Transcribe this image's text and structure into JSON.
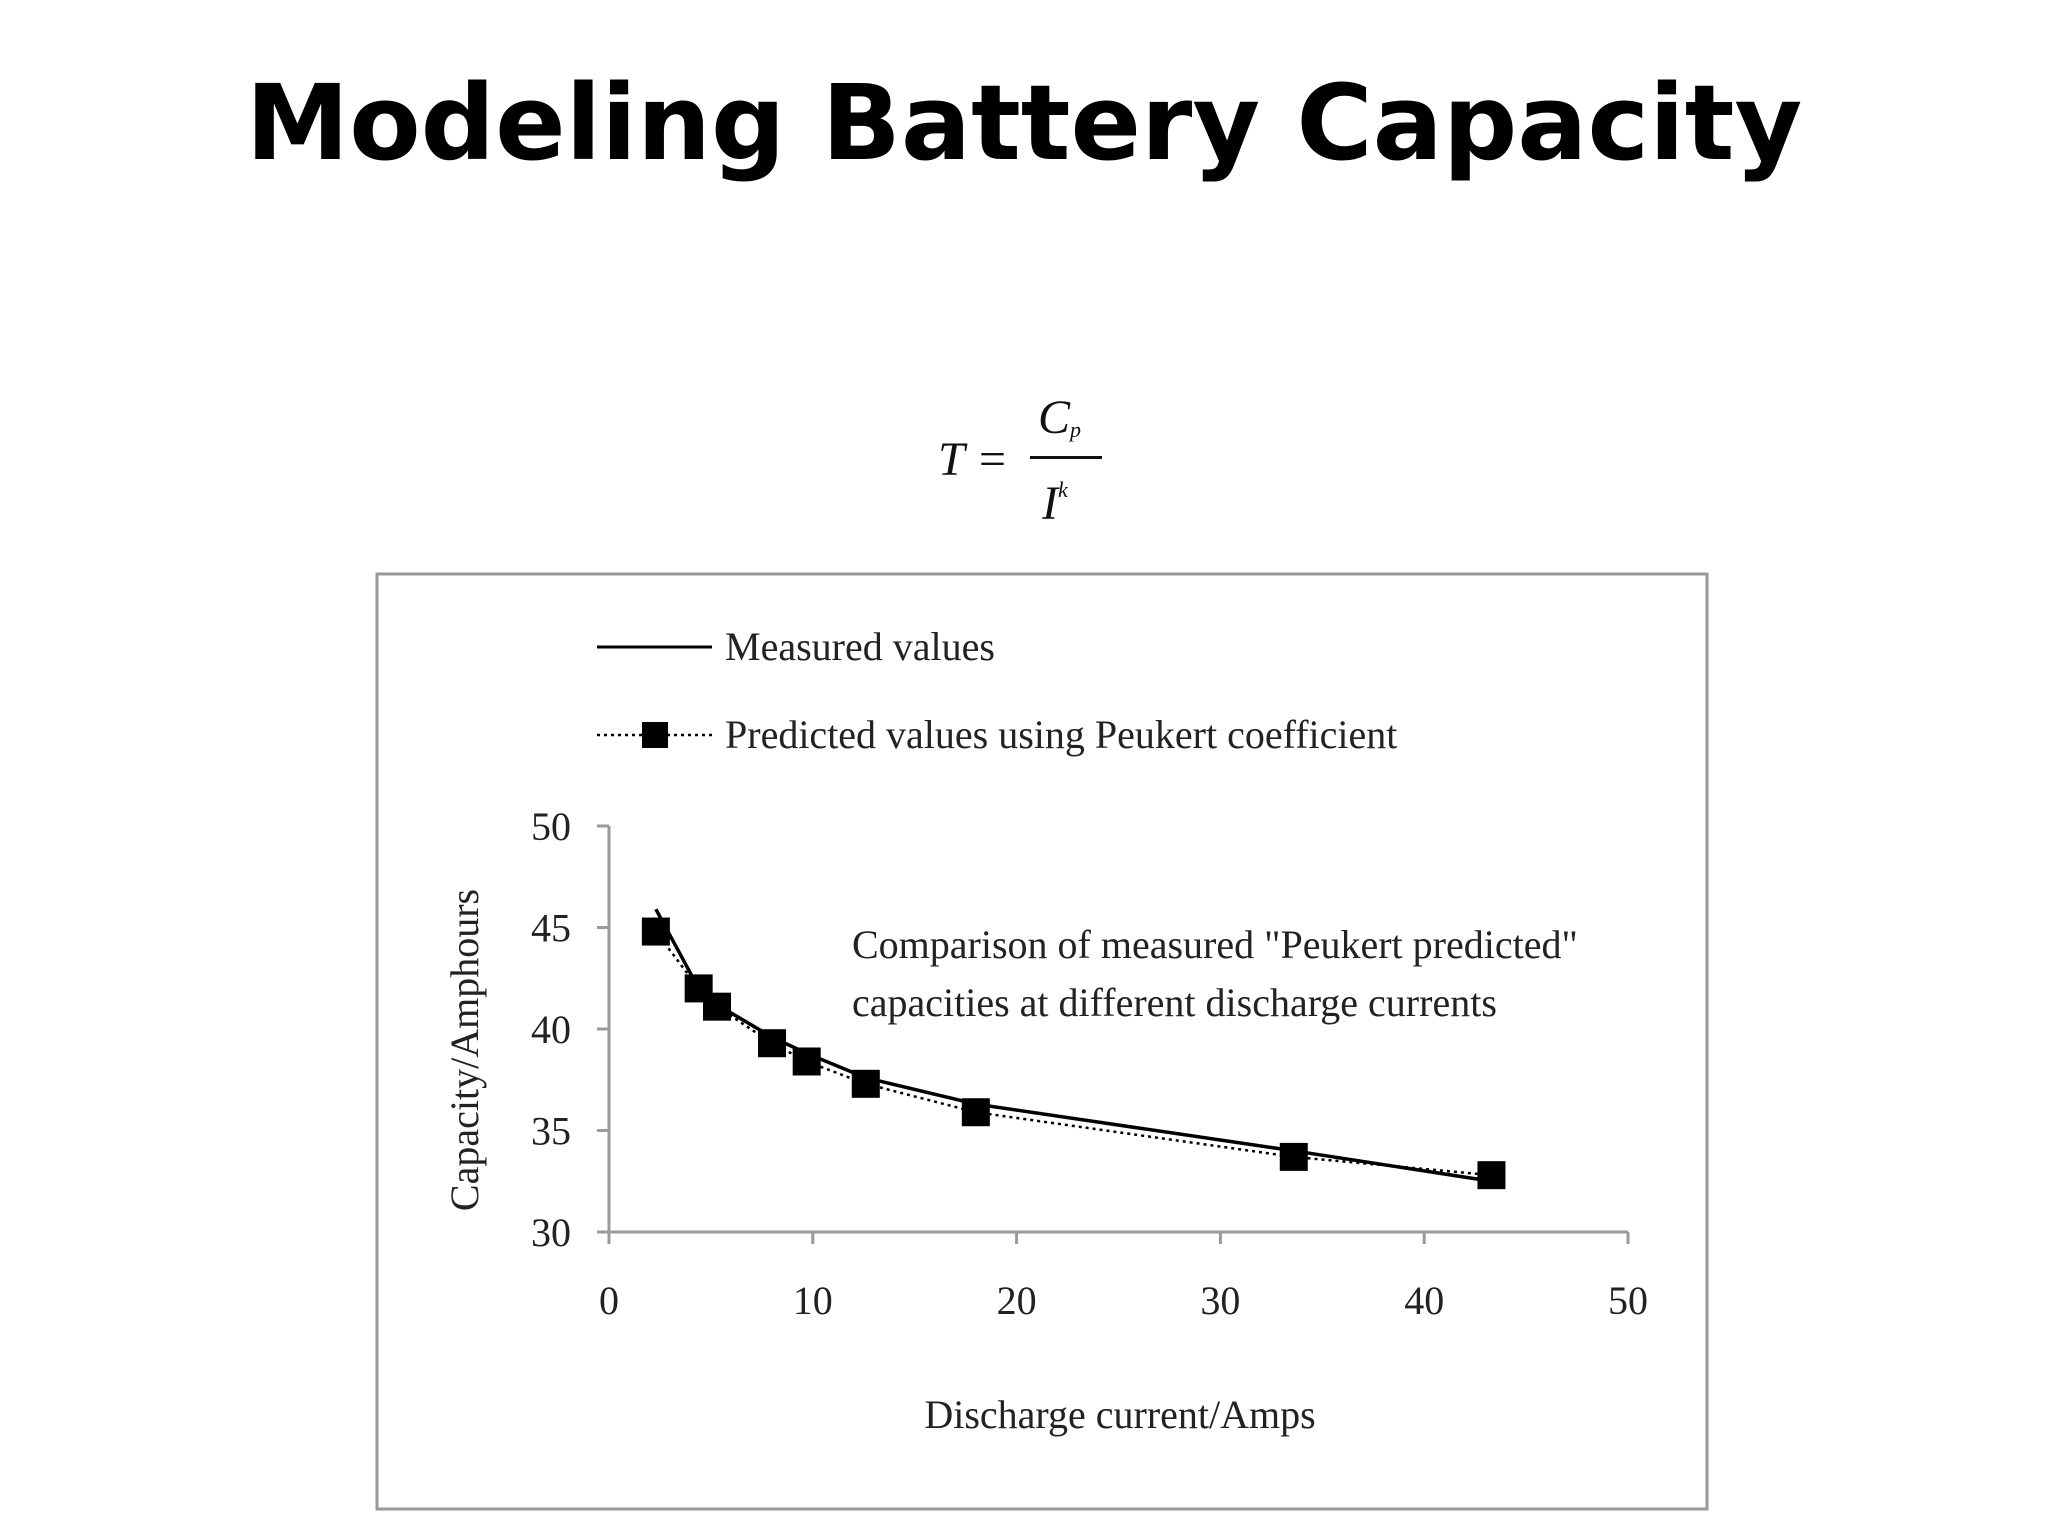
{
  "title": "Modeling Battery Capacity",
  "formula": {
    "lhs": "T =",
    "numerator": "C",
    "numerator_sub": "p",
    "denominator": "I",
    "denominator_sup": "k"
  },
  "chart_data": {
    "type": "line",
    "title": "",
    "annotation": [
      "Comparison of measured \"Peukert predicted\"",
      "capacities at different discharge currents"
    ],
    "xlabel": "Discharge current/Amps",
    "ylabel": "Capacity/Amphours",
    "xlim": [
      0,
      50
    ],
    "ylim": [
      30,
      50
    ],
    "xticks": [
      0,
      10,
      20,
      30,
      40,
      50
    ],
    "yticks": [
      30,
      35,
      40,
      45,
      50
    ],
    "grid": false,
    "legend_position": "top-left",
    "series": [
      {
        "name": "Measured values",
        "style": "solid",
        "color": "#000000",
        "x": [
          2.3,
          4.4,
          5.3,
          8.0,
          9.7,
          12.6,
          18.0,
          33.6,
          43.3
        ],
        "y": [
          45.9,
          42.0,
          41.2,
          39.6,
          38.8,
          37.6,
          36.3,
          34.0,
          32.5
        ]
      },
      {
        "name": "Predicted values using Peukert coefficient",
        "style": "dotted",
        "marker": "square",
        "color": "#000000",
        "x": [
          2.3,
          4.4,
          5.3,
          8.0,
          9.7,
          12.6,
          18.0,
          33.6,
          43.3
        ],
        "y": [
          44.8,
          42.0,
          41.1,
          39.3,
          38.4,
          37.3,
          35.9,
          33.7,
          32.8
        ]
      }
    ]
  }
}
